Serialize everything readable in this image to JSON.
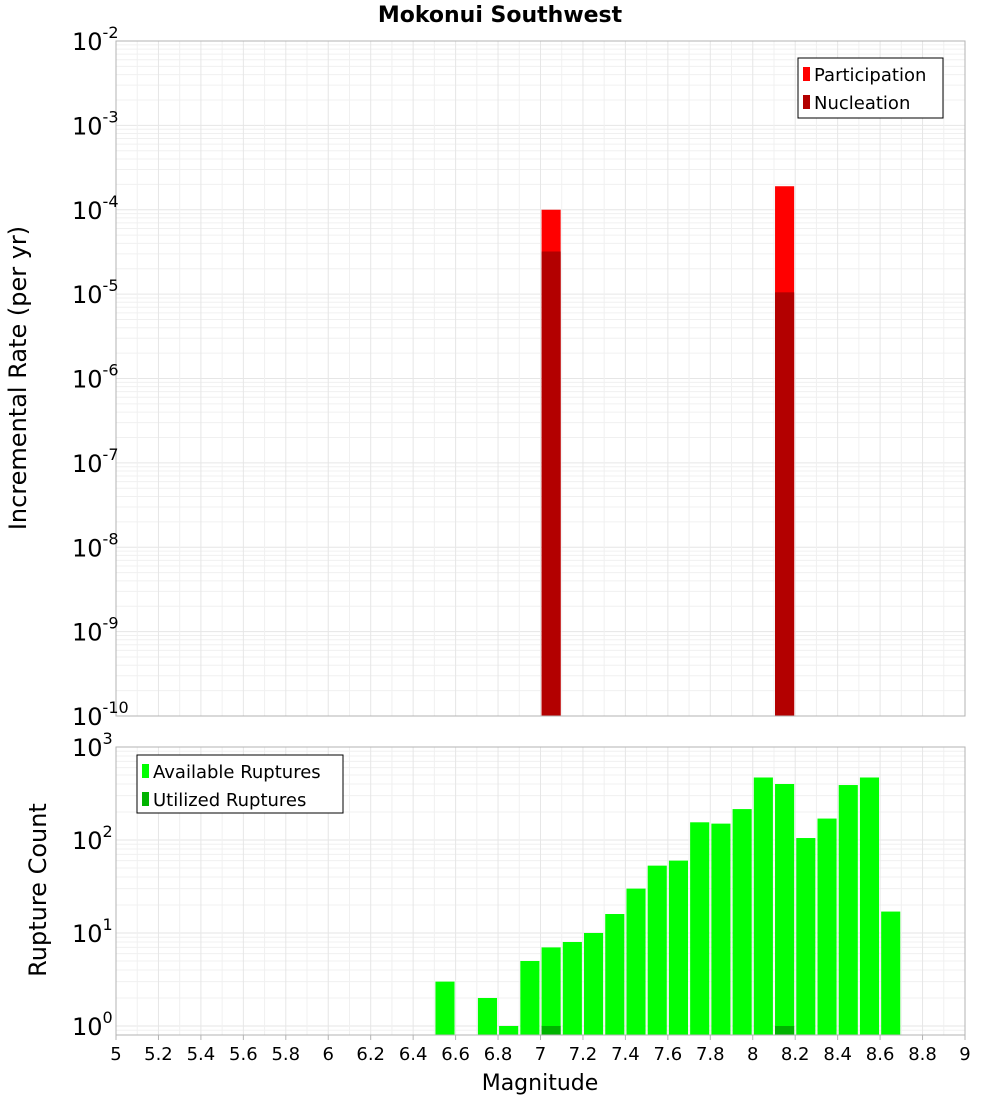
{
  "chart_data": [
    {
      "type": "bar",
      "title": "Mokonui Southwest",
      "xlabel": "",
      "ylabel": "Incremental Rate (per yr)",
      "yscale": "log",
      "ylim": [
        1e-10,
        0.01
      ],
      "xlim": [
        5,
        9
      ],
      "grid": true,
      "legend_position": "top-right",
      "series": [
        {
          "name": "Participation",
          "color": "#ff0000",
          "x": [
            7.05,
            8.15
          ],
          "values": [
            0.0001,
            0.00019
          ]
        },
        {
          "name": "Nucleation",
          "color": "#b30000",
          "x": [
            7.05,
            8.15
          ],
          "values": [
            3.2e-05,
            1.05e-05
          ]
        }
      ],
      "ytick_labels": [
        {
          "base": "10",
          "exp": "-10"
        },
        {
          "base": "10",
          "exp": "-9"
        },
        {
          "base": "10",
          "exp": "-8"
        },
        {
          "base": "10",
          "exp": "-7"
        },
        {
          "base": "10",
          "exp": "-6"
        },
        {
          "base": "10",
          "exp": "-5"
        },
        {
          "base": "10",
          "exp": "-4"
        },
        {
          "base": "10",
          "exp": "-3"
        },
        {
          "base": "10",
          "exp": "-2"
        }
      ]
    },
    {
      "type": "bar",
      "title": "",
      "xlabel": "Magnitude",
      "ylabel": "Rupture Count",
      "yscale": "log",
      "ylim": [
        0.8,
        1000
      ],
      "xlim": [
        5,
        9
      ],
      "grid": true,
      "legend_position": "top-left",
      "bar_width": 0.09,
      "series": [
        {
          "name": "Available Ruptures",
          "color": "#00ff00",
          "x": [
            6.55,
            6.75,
            6.85,
            6.95,
            7.05,
            7.15,
            7.25,
            7.35,
            7.45,
            7.55,
            7.65,
            7.75,
            7.85,
            7.95,
            8.05,
            8.15,
            8.25,
            8.35,
            8.45,
            8.55,
            8.65
          ],
          "values": [
            3,
            2,
            1,
            5,
            7,
            8,
            10,
            16,
            30,
            53,
            60,
            155,
            150,
            215,
            470,
            400,
            105,
            170,
            390,
            470,
            17
          ]
        },
        {
          "name": "Utilized Ruptures",
          "color": "#00b300",
          "x": [
            7.05,
            8.15
          ],
          "values": [
            1,
            1
          ]
        }
      ],
      "ytick_labels": [
        {
          "base": "10",
          "exp": "0"
        },
        {
          "base": "10",
          "exp": "1"
        },
        {
          "base": "10",
          "exp": "2"
        },
        {
          "base": "10",
          "exp": "3"
        }
      ],
      "xtick_labels": [
        "5",
        "5.2",
        "5.4",
        "5.6",
        "5.8",
        "6",
        "6.2",
        "6.4",
        "6.6",
        "6.8",
        "7",
        "7.2",
        "7.4",
        "7.6",
        "7.8",
        "8",
        "8.2",
        "8.4",
        "8.6",
        "8.8",
        "9"
      ]
    }
  ]
}
